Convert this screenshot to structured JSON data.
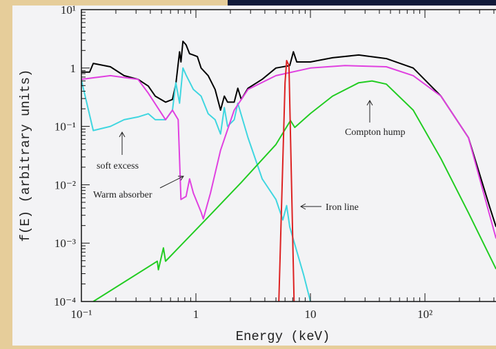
{
  "chart_data": {
    "type": "line",
    "xlabel": "Energy (keV)",
    "ylabel": "f(E) (arbitrary units)",
    "xscale": "log",
    "yscale": "log",
    "xlim": [
      0.1,
      1000
    ],
    "ylim": [
      0.0001,
      10
    ],
    "xticks": [
      {
        "value": 0.1,
        "label": "10⁻¹"
      },
      1,
      10,
      {
        "value": 100,
        "label": "10²"
      }
    ],
    "yticks": [
      {
        "value": 10,
        "label": "10¹"
      },
      1,
      {
        "value": 0.1,
        "label": "10⁻¹"
      },
      {
        "value": 0.01,
        "label": "10⁻²"
      },
      {
        "value": 0.001,
        "label": "10⁻³"
      },
      {
        "value": 0.0001,
        "label": "10⁻⁴"
      }
    ],
    "series": [
      {
        "color": "#000000",
        "x": [
          0.1,
          0.118,
          0.127,
          0.179,
          0.236,
          0.312,
          0.384,
          0.441,
          0.543,
          0.624,
          0.668,
          0.72,
          0.74,
          0.77,
          0.82,
          0.88,
          0.95,
          1.03,
          1.11,
          1.28,
          1.47,
          1.64,
          1.77,
          1.89,
          2.16,
          2.32,
          2.49,
          2.85,
          3.79,
          5.0,
          6.6,
          7.1,
          7.6,
          10,
          15.6,
          26.4,
          46,
          79,
          138,
          240,
          367,
          418
        ],
        "values": [
          0.85,
          0.85,
          1.2,
          1.05,
          0.74,
          0.64,
          0.49,
          0.33,
          0.26,
          0.29,
          0.53,
          1.9,
          1.27,
          2.87,
          2.5,
          1.76,
          1.67,
          1.57,
          1.0,
          0.74,
          0.43,
          0.19,
          0.33,
          0.26,
          0.26,
          0.45,
          0.29,
          0.45,
          0.64,
          1.0,
          1.1,
          1.9,
          1.27,
          1.27,
          1.5,
          1.67,
          1.45,
          1.0,
          0.33,
          0.064,
          0.0042,
          0.0019
        ]
      },
      {
        "color": "#3fd6e0",
        "x": [
          0.1,
          0.127,
          0.179,
          0.236,
          0.312,
          0.384,
          0.441,
          0.543,
          0.624,
          0.668,
          0.72,
          0.77,
          0.82,
          0.95,
          1.11,
          1.28,
          1.47,
          1.64,
          1.77,
          1.89,
          2.16,
          2.32,
          2.85,
          3.79,
          5.0,
          5.74,
          6.2,
          6.6,
          8.7,
          10
        ],
        "values": [
          0.62,
          0.085,
          0.1,
          0.13,
          0.145,
          0.165,
          0.13,
          0.13,
          0.19,
          0.56,
          0.25,
          1.0,
          0.76,
          0.43,
          0.33,
          0.165,
          0.13,
          0.074,
          0.21,
          0.1,
          0.13,
          0.25,
          0.064,
          0.0126,
          0.0056,
          0.0025,
          0.0044,
          0.0019,
          0.00029,
          0.0001
        ]
      },
      {
        "color": "#e040e0",
        "x": [
          0.1,
          0.179,
          0.312,
          0.384,
          0.543,
          0.624,
          0.7,
          0.74,
          0.82,
          0.88,
          0.95,
          1.11,
          1.16,
          1.34,
          1.64,
          2.16,
          2.85,
          5.0,
          10,
          20,
          46,
          79,
          138,
          240,
          418
        ],
        "values": [
          0.64,
          0.74,
          0.64,
          0.37,
          0.13,
          0.19,
          0.13,
          0.0056,
          0.0063,
          0.0126,
          0.0072,
          0.0034,
          0.0026,
          0.0072,
          0.039,
          0.19,
          0.43,
          0.74,
          1.0,
          1.1,
          1.05,
          0.74,
          0.33,
          0.064,
          0.0012
        ]
      },
      {
        "color": "#22cc22",
        "x": [
          0.127,
          0.46,
          0.47,
          0.52,
          0.543,
          1.28,
          2.49,
          5.0,
          6.7,
          7.3,
          10,
          15.6,
          26.4,
          34.5,
          46,
          79,
          138,
          240,
          418
        ],
        "values": [
          0.0001,
          0.00049,
          0.00035,
          0.00083,
          0.00049,
          0.0028,
          0.011,
          0.049,
          0.126,
          0.096,
          0.166,
          0.33,
          0.56,
          0.6,
          0.53,
          0.19,
          0.028,
          0.0033,
          0.00036
        ]
      },
      {
        "color": "#dd2222",
        "x": [
          5.3,
          6.0,
          6.2,
          6.5,
          7.2
        ],
        "values": [
          0.0001,
          0.56,
          1.34,
          1.1,
          0.0001
        ]
      }
    ],
    "annotations": [
      "Compton hump",
      "soft excess",
      "Warm absorber",
      "Iron line"
    ]
  }
}
